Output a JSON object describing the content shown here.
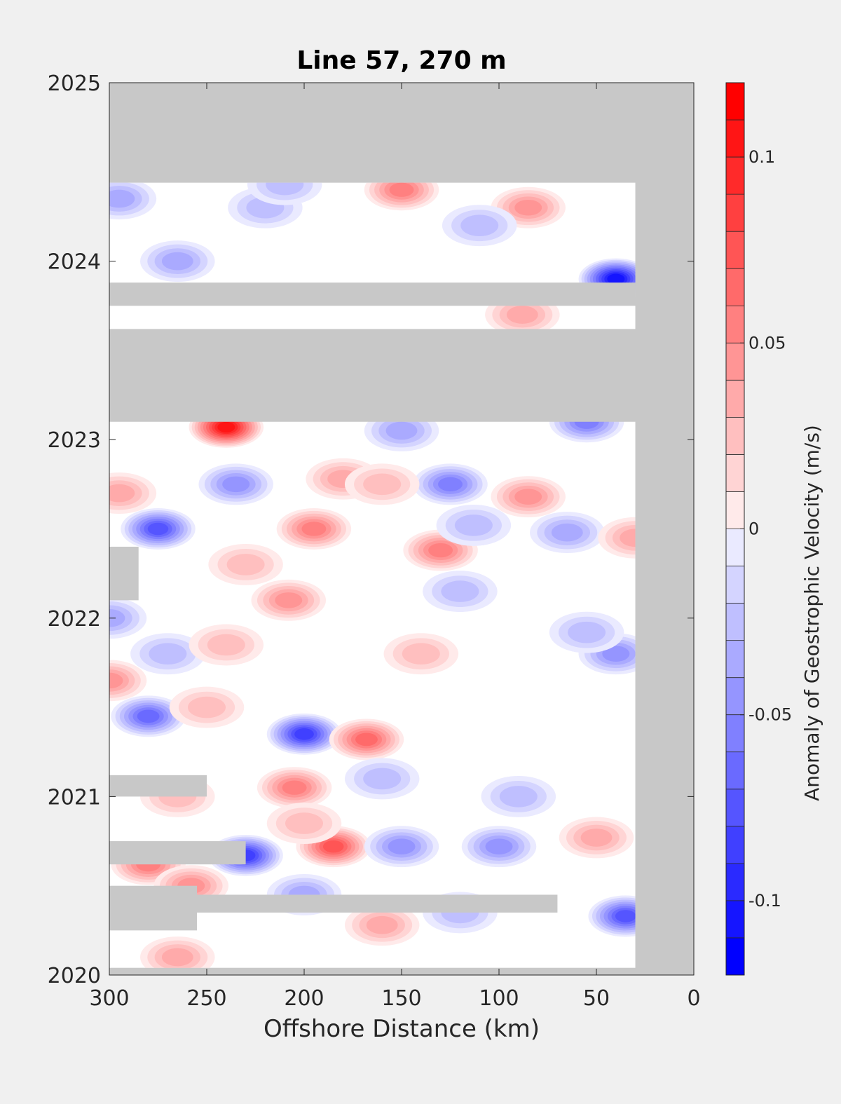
{
  "chart_data": {
    "type": "heatmap",
    "title": "Line 57, 270 m",
    "xlabel": "Offshore Distance (km)",
    "ylabel": "",
    "xlim": [
      300,
      0
    ],
    "x_reversed": true,
    "ylim": [
      2020,
      2025
    ],
    "x_ticks": [
      300,
      250,
      200,
      150,
      100,
      50,
      0
    ],
    "x_tick_labels": [
      "300",
      "250",
      "200",
      "150",
      "100",
      "50",
      "0"
    ],
    "y_ticks": [
      2020,
      2021,
      2022,
      2023,
      2024,
      2025
    ],
    "y_tick_labels": [
      "2020",
      "2021",
      "2022",
      "2023",
      "2024",
      "2025"
    ],
    "colorbar": {
      "label": "Anomaly of Geostrophic Velocity (m/s)",
      "clim": [
        -0.12,
        0.12
      ],
      "levels_step": 0.01,
      "ticks": [
        -0.1,
        -0.05,
        0,
        0.05,
        0.1
      ],
      "tick_labels": [
        "-0.1",
        "-0.05",
        "0",
        "0.05",
        "0.1"
      ],
      "colormap": "blue-white-red"
    },
    "missing_color": "#c8c8c8",
    "data_x_range_km": [
      30,
      300
    ],
    "missing_periods": [
      {
        "x_from": 300,
        "x_to": 255,
        "t_from": 2020.25,
        "t_to": 2020.5
      },
      {
        "x_from": 300,
        "x_to": 70,
        "t_from": 2020.35,
        "t_to": 2020.45
      },
      {
        "x_from": 300,
        "x_to": 230,
        "t_from": 2020.62,
        "t_to": 2020.75
      },
      {
        "x_from": 300,
        "x_to": 250,
        "t_from": 2021.0,
        "t_to": 2021.12
      },
      {
        "x_from": 300,
        "x_to": 285,
        "t_from": 2022.1,
        "t_to": 2022.4
      },
      {
        "x_from": 300,
        "x_to": 30,
        "t_from": 2023.1,
        "t_to": 2023.62
      },
      {
        "x_from": 300,
        "x_to": 30,
        "t_from": 2023.75,
        "t_to": 2023.88
      },
      {
        "x_from": 300,
        "x_to": 0,
        "t_from": 2024.44,
        "t_to": 2025.0
      }
    ],
    "features": [
      {
        "x": 240,
        "t": 2023.07,
        "value": 0.11
      },
      {
        "x": 40,
        "t": 2023.9,
        "value": -0.11
      },
      {
        "x": 230,
        "t": 2020.67,
        "value": -0.09
      },
      {
        "x": 200,
        "t": 2021.35,
        "value": -0.09
      },
      {
        "x": 275,
        "t": 2022.5,
        "value": -0.08
      },
      {
        "x": 35,
        "t": 2020.33,
        "value": -0.08
      },
      {
        "x": 185,
        "t": 2020.72,
        "value": 0.08
      },
      {
        "x": 168,
        "t": 2021.32,
        "value": 0.07
      },
      {
        "x": 205,
        "t": 2021.05,
        "value": 0.06
      },
      {
        "x": 195,
        "t": 2022.5,
        "value": 0.06
      },
      {
        "x": 150,
        "t": 2024.4,
        "value": 0.06
      },
      {
        "x": 280,
        "t": 2020.62,
        "value": 0.06
      },
      {
        "x": 130,
        "t": 2022.38,
        "value": 0.06
      },
      {
        "x": 85,
        "t": 2022.68,
        "value": 0.05
      },
      {
        "x": 125,
        "t": 2022.75,
        "value": -0.06
      },
      {
        "x": 55,
        "t": 2023.1,
        "value": -0.06
      },
      {
        "x": 85,
        "t": 2024.3,
        "value": 0.05
      },
      {
        "x": 280,
        "t": 2021.45,
        "value": -0.07
      },
      {
        "x": 208,
        "t": 2022.1,
        "value": 0.05
      },
      {
        "x": 258,
        "t": 2020.5,
        "value": 0.05
      },
      {
        "x": 300,
        "t": 2021.65,
        "value": 0.05
      },
      {
        "x": 295,
        "t": 2022.7,
        "value": 0.04
      },
      {
        "x": 160,
        "t": 2020.28,
        "value": 0.04
      },
      {
        "x": 50,
        "t": 2020.77,
        "value": 0.04
      },
      {
        "x": 88,
        "t": 2023.7,
        "value": 0.04
      },
      {
        "x": 100,
        "t": 2020.72,
        "value": -0.05
      },
      {
        "x": 150,
        "t": 2020.72,
        "value": -0.05
      },
      {
        "x": 40,
        "t": 2021.8,
        "value": -0.05
      },
      {
        "x": 235,
        "t": 2022.75,
        "value": -0.05
      },
      {
        "x": 295,
        "t": 2024.35,
        "value": -0.04
      },
      {
        "x": 265,
        "t": 2024.0,
        "value": -0.04
      },
      {
        "x": 150,
        "t": 2023.05,
        "value": -0.04
      },
      {
        "x": 200,
        "t": 2020.45,
        "value": -0.04
      },
      {
        "x": 265,
        "t": 2020.1,
        "value": 0.04
      },
      {
        "x": 200,
        "t": 2020.85,
        "value": 0.03
      },
      {
        "x": 230,
        "t": 2022.3,
        "value": 0.03
      },
      {
        "x": 65,
        "t": 2022.48,
        "value": -0.04
      },
      {
        "x": 113,
        "t": 2022.52,
        "value": -0.03
      },
      {
        "x": 180,
        "t": 2022.78,
        "value": 0.04
      },
      {
        "x": 160,
        "t": 2022.75,
        "value": 0.03
      },
      {
        "x": 90,
        "t": 2021.0,
        "value": -0.03
      },
      {
        "x": 160,
        "t": 2021.1,
        "value": -0.03
      },
      {
        "x": 30,
        "t": 2022.45,
        "value": 0.04
      },
      {
        "x": 270,
        "t": 2021.8,
        "value": -0.03
      },
      {
        "x": 240,
        "t": 2021.85,
        "value": 0.03
      },
      {
        "x": 140,
        "t": 2021.8,
        "value": 0.03
      },
      {
        "x": 120,
        "t": 2022.15,
        "value": -0.03
      },
      {
        "x": 55,
        "t": 2021.92,
        "value": -0.03
      },
      {
        "x": 250,
        "t": 2021.5,
        "value": 0.03
      },
      {
        "x": 265,
        "t": 2021.0,
        "value": 0.03
      },
      {
        "x": 110,
        "t": 2024.2,
        "value": -0.03
      },
      {
        "x": 220,
        "t": 2024.3,
        "value": -0.03
      },
      {
        "x": 120,
        "t": 2020.35,
        "value": -0.03
      },
      {
        "x": 210,
        "t": 2024.43,
        "value": -0.03
      },
      {
        "x": 300,
        "t": 2022.0,
        "value": -0.04
      }
    ]
  }
}
